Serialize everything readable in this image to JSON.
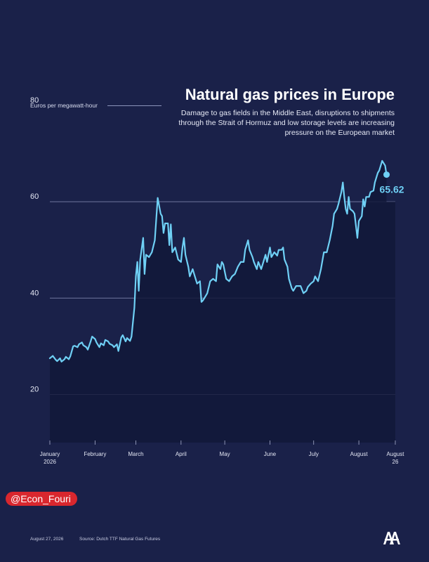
{
  "header": {
    "title": "Natural gas prices in Europe",
    "subtitle": "Damage to gas fields in the Middle East, disruptions to shipments through the Strait of Hormuz and low storage levels are increasing pressure on the European market",
    "unit_label": "Euros per megawatt-hour"
  },
  "social": {
    "handle": "@Econ_Fouri"
  },
  "footer": {
    "date": "August 27, 2026",
    "source": "Source: Dutch TTF Natural Gas Futures",
    "logo_icon": "aa-logo-icon"
  },
  "colors": {
    "background": "#1a2149",
    "line": "#6fd0f5",
    "area": "#121838",
    "grid": "#8c94bb"
  },
  "chart_data": {
    "type": "area",
    "title": "Natural gas prices in Europe",
    "ylabel": "Euros per megawatt-hour",
    "ylim": [
      10,
      80
    ],
    "yticks": [
      20,
      40,
      60,
      80
    ],
    "xlim": [
      "2026-01-01",
      "2026-08-26"
    ],
    "xticks": [
      {
        "date": "2026-01-01",
        "label": "January",
        "sublabel": "2026"
      },
      {
        "date": "2026-02-01",
        "label": "February",
        "sublabel": ""
      },
      {
        "date": "2026-03-01",
        "label": "March",
        "sublabel": ""
      },
      {
        "date": "2026-04-01",
        "label": "April",
        "sublabel": ""
      },
      {
        "date": "2026-05-01",
        "label": "May",
        "sublabel": ""
      },
      {
        "date": "2026-06-01",
        "label": "June",
        "sublabel": ""
      },
      {
        "date": "2026-07-01",
        "label": "July",
        "sublabel": ""
      },
      {
        "date": "2026-08-01",
        "label": "August",
        "sublabel": ""
      },
      {
        "date": "2026-08-26",
        "label": "August",
        "sublabel": "26"
      }
    ],
    "grid": true,
    "legend": "none",
    "last_value_label": "65.62",
    "series": [
      {
        "points": [
          [
            "2026-01-01",
            27.5
          ],
          [
            "2026-01-03",
            28.0
          ],
          [
            "2026-01-05",
            27.2
          ],
          [
            "2026-01-06",
            26.9
          ],
          [
            "2026-01-08",
            27.5
          ],
          [
            "2026-01-09",
            26.8
          ],
          [
            "2026-01-11",
            27.3
          ],
          [
            "2026-01-12",
            27.8
          ],
          [
            "2026-01-14",
            27.3
          ],
          [
            "2026-01-15",
            27.9
          ],
          [
            "2026-01-17",
            30.0
          ],
          [
            "2026-01-18",
            30.1
          ],
          [
            "2026-01-20",
            29.8
          ],
          [
            "2026-01-21",
            30.4
          ],
          [
            "2026-01-23",
            30.8
          ],
          [
            "2026-01-24",
            30.2
          ],
          [
            "2026-01-26",
            29.8
          ],
          [
            "2026-01-27",
            29.3
          ],
          [
            "2026-01-29",
            31.0
          ],
          [
            "2026-01-30",
            32.0
          ],
          [
            "2026-02-01",
            31.5
          ],
          [
            "2026-02-02",
            30.8
          ],
          [
            "2026-02-04",
            29.8
          ],
          [
            "2026-02-05",
            30.6
          ],
          [
            "2026-02-07",
            30.2
          ],
          [
            "2026-02-08",
            31.3
          ],
          [
            "2026-02-10",
            31.0
          ],
          [
            "2026-02-11",
            30.5
          ],
          [
            "2026-02-13",
            30.2
          ],
          [
            "2026-02-14",
            29.8
          ],
          [
            "2026-02-16",
            30.4
          ],
          [
            "2026-02-17",
            29.0
          ],
          [
            "2026-02-19",
            31.8
          ],
          [
            "2026-02-20",
            32.3
          ],
          [
            "2026-02-22",
            31.0
          ],
          [
            "2026-02-23",
            31.7
          ],
          [
            "2026-02-25",
            31.1
          ],
          [
            "2026-02-26",
            32.0
          ],
          [
            "2026-02-28",
            38.0
          ],
          [
            "2026-03-01",
            44.5
          ],
          [
            "2026-03-02",
            47.5
          ],
          [
            "2026-03-03",
            41.5
          ],
          [
            "2026-03-04",
            48.0
          ],
          [
            "2026-03-06",
            52.5
          ],
          [
            "2026-03-07",
            45.0
          ],
          [
            "2026-03-08",
            49.0
          ],
          [
            "2026-03-10",
            48.5
          ],
          [
            "2026-03-12",
            49.5
          ],
          [
            "2026-03-14",
            52.0
          ],
          [
            "2026-03-16",
            60.8
          ],
          [
            "2026-03-18",
            57.5
          ],
          [
            "2026-03-19",
            57.0
          ],
          [
            "2026-03-20",
            53.5
          ],
          [
            "2026-03-21",
            55.5
          ],
          [
            "2026-03-23",
            55.5
          ],
          [
            "2026-03-24",
            51.0
          ],
          [
            "2026-03-25",
            55.3
          ],
          [
            "2026-03-26",
            49.5
          ],
          [
            "2026-03-28",
            50.5
          ],
          [
            "2026-03-30",
            48.0
          ],
          [
            "2026-04-01",
            47.5
          ],
          [
            "2026-04-02",
            50.5
          ],
          [
            "2026-04-03",
            52.5
          ],
          [
            "2026-04-04",
            49.0
          ],
          [
            "2026-04-06",
            46.5
          ],
          [
            "2026-04-07",
            44.5
          ],
          [
            "2026-04-09",
            46.0
          ],
          [
            "2026-04-11",
            44.0
          ],
          [
            "2026-04-12",
            43.0
          ],
          [
            "2026-04-14",
            43.5
          ],
          [
            "2026-04-15",
            39.2
          ],
          [
            "2026-04-16",
            39.5
          ],
          [
            "2026-04-17",
            40.0
          ],
          [
            "2026-04-19",
            41.0
          ],
          [
            "2026-04-21",
            43.5
          ],
          [
            "2026-04-23",
            44.0
          ],
          [
            "2026-04-25",
            43.5
          ],
          [
            "2026-04-26",
            47.0
          ],
          [
            "2026-04-28",
            46.0
          ],
          [
            "2026-04-29",
            47.5
          ],
          [
            "2026-04-30",
            47.0
          ],
          [
            "2026-05-02",
            44.0
          ],
          [
            "2026-05-04",
            43.5
          ],
          [
            "2026-05-06",
            44.5
          ],
          [
            "2026-05-08",
            45.0
          ],
          [
            "2026-05-10",
            46.5
          ],
          [
            "2026-05-12",
            47.5
          ],
          [
            "2026-05-14",
            47.5
          ],
          [
            "2026-05-15",
            50.0
          ],
          [
            "2026-05-17",
            52.0
          ],
          [
            "2026-05-18",
            50.0
          ],
          [
            "2026-05-20",
            48.5
          ],
          [
            "2026-05-21",
            47.5
          ],
          [
            "2026-05-23",
            46.0
          ],
          [
            "2026-05-24",
            47.5
          ],
          [
            "2026-05-26",
            46.0
          ],
          [
            "2026-05-27",
            47.0
          ],
          [
            "2026-05-29",
            49.0
          ],
          [
            "2026-05-30",
            47.5
          ],
          [
            "2026-06-01",
            50.5
          ],
          [
            "2026-06-02",
            48.5
          ],
          [
            "2026-06-04",
            49.5
          ],
          [
            "2026-06-06",
            48.8
          ],
          [
            "2026-06-07",
            50.0
          ],
          [
            "2026-06-09",
            50.0
          ],
          [
            "2026-06-10",
            50.5
          ],
          [
            "2026-06-11",
            48.0
          ],
          [
            "2026-06-13",
            46.5
          ],
          [
            "2026-06-14",
            44.0
          ],
          [
            "2026-06-16",
            42.0
          ],
          [
            "2026-06-17",
            41.5
          ],
          [
            "2026-06-19",
            42.5
          ],
          [
            "2026-06-20",
            42.5
          ],
          [
            "2026-06-22",
            42.5
          ],
          [
            "2026-06-24",
            41.0
          ],
          [
            "2026-06-26",
            41.5
          ],
          [
            "2026-06-27",
            42.3
          ],
          [
            "2026-06-29",
            43.0
          ],
          [
            "2026-07-01",
            43.5
          ],
          [
            "2026-07-02",
            44.5
          ],
          [
            "2026-07-04",
            43.5
          ],
          [
            "2026-07-06",
            46.0
          ],
          [
            "2026-07-08",
            49.5
          ],
          [
            "2026-07-10",
            49.5
          ],
          [
            "2026-07-12",
            52.0
          ],
          [
            "2026-07-14",
            55.0
          ],
          [
            "2026-07-15",
            57.5
          ],
          [
            "2026-07-17",
            58.5
          ],
          [
            "2026-07-18",
            59.5
          ],
          [
            "2026-07-20",
            62.0
          ],
          [
            "2026-07-21",
            64.0
          ],
          [
            "2026-07-22",
            61.0
          ],
          [
            "2026-07-23",
            58.5
          ],
          [
            "2026-07-24",
            57.5
          ],
          [
            "2026-07-25",
            61.0
          ],
          [
            "2026-07-26",
            58.5
          ],
          [
            "2026-07-28",
            58.0
          ],
          [
            "2026-07-29",
            57.5
          ],
          [
            "2026-07-31",
            52.5
          ],
          [
            "2026-08-01",
            56.0
          ],
          [
            "2026-08-03",
            57.0
          ],
          [
            "2026-08-04",
            60.5
          ],
          [
            "2026-08-05",
            59.0
          ],
          [
            "2026-08-06",
            61.0
          ],
          [
            "2026-08-08",
            61.0
          ],
          [
            "2026-08-09",
            62.0
          ],
          [
            "2026-08-11",
            62.3
          ],
          [
            "2026-08-12",
            64.0
          ],
          [
            "2026-08-14",
            66.0
          ],
          [
            "2026-08-15",
            66.5
          ],
          [
            "2026-08-17",
            68.5
          ],
          [
            "2026-08-19",
            67.5
          ],
          [
            "2026-08-20",
            65.62
          ]
        ]
      }
    ]
  }
}
